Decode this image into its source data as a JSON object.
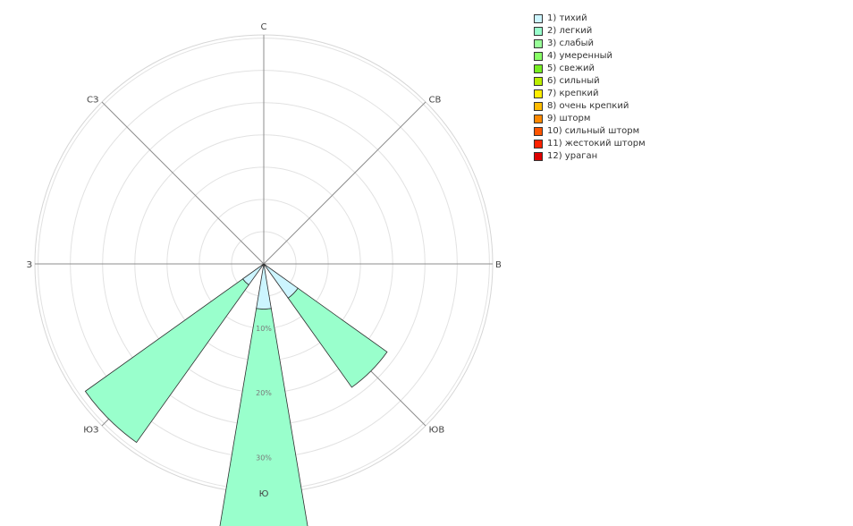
{
  "chart_data": {
    "type": "windrose",
    "directions": [
      {
        "key": "N",
        "label": "С",
        "angle": 0
      },
      {
        "key": "NE",
        "label": "СВ",
        "angle": 45
      },
      {
        "key": "E",
        "label": "В",
        "angle": 90
      },
      {
        "key": "SE",
        "label": "ЮВ",
        "angle": 135
      },
      {
        "key": "S",
        "label": "Ю",
        "angle": 180
      },
      {
        "key": "SW",
        "label": "ЮЗ",
        "angle": 225
      },
      {
        "key": "W",
        "label": "З",
        "angle": 270
      },
      {
        "key": "NW",
        "label": "СЗ",
        "angle": 315
      }
    ],
    "radial_ticks": [
      {
        "value": 10,
        "label": "10%"
      },
      {
        "value": 20,
        "label": "20%"
      },
      {
        "value": 30,
        "label": "30%"
      }
    ],
    "r_max": 35.5,
    "ring_step": 5,
    "grid": true,
    "legend_position": "top-right",
    "series": [
      {
        "name": "1) тихий",
        "color": "#ccf5ff",
        "values": {
          "N": 0,
          "NE": 0,
          "E": 0,
          "SE": 6.5,
          "S": 7,
          "SW": 4,
          "W": 0,
          "NW": 0
        }
      },
      {
        "name": "2) легкий",
        "color": "#99ffcc",
        "values": {
          "N": 0,
          "NE": 0,
          "E": 0,
          "SE": 17,
          "S": 37,
          "SW": 30,
          "W": 0,
          "NW": 0
        }
      },
      {
        "name": "3) слабый",
        "color": "#99ff99",
        "values": {}
      },
      {
        "name": "4) умеренный",
        "color": "#88ff66",
        "values": {}
      },
      {
        "name": "5) свежий",
        "color": "#77ee22",
        "values": {}
      },
      {
        "name": "6) сильный",
        "color": "#bbee00",
        "values": {}
      },
      {
        "name": "7) крепкий",
        "color": "#ffee00",
        "values": {}
      },
      {
        "name": "8) очень крепкий",
        "color": "#ffbb00",
        "values": {}
      },
      {
        "name": "9) шторм",
        "color": "#ff8800",
        "values": {}
      },
      {
        "name": "10) сильный шторм",
        "color": "#ff5500",
        "values": {}
      },
      {
        "name": "11) жестокий шторм",
        "color": "#ff2200",
        "values": {}
      },
      {
        "name": "12) ураган",
        "color": "#dd0000",
        "values": {}
      }
    ]
  }
}
